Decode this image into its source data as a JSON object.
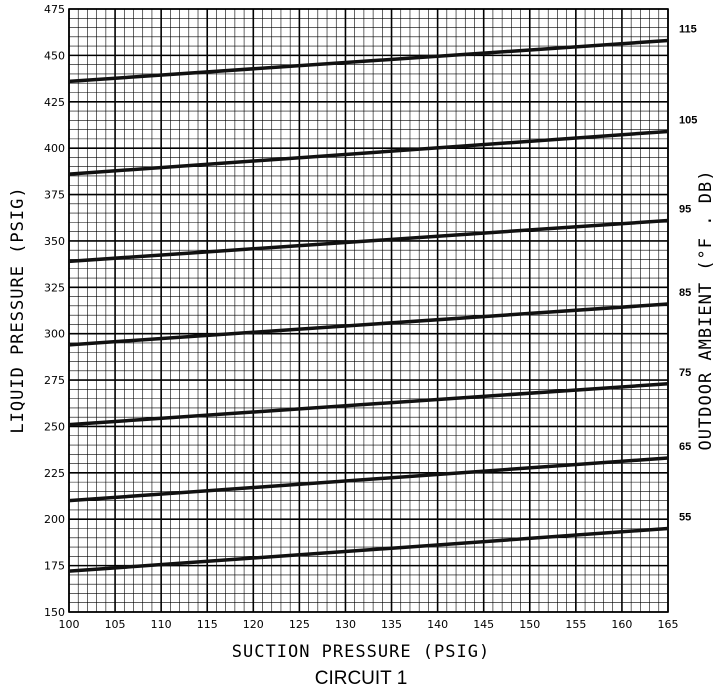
{
  "chart_data": {
    "type": "line",
    "xlabel": "SUCTION PRESSURE (PSIG)",
    "ylabel": "LIQUID PRESSURE (PSIG)",
    "y2label": "OUTDOOR AMBIENT (°F . DB)",
    "caption": "CIRCUIT 1",
    "xlim": [
      100,
      165
    ],
    "ylim": [
      150,
      475
    ],
    "x_ticks": [
      "100",
      "105",
      "110",
      "115",
      "120",
      "125",
      "130",
      "135",
      "140",
      "145",
      "150",
      "155",
      "160",
      "165"
    ],
    "y_ticks": [
      "150",
      "175",
      "200",
      "225",
      "250",
      "275",
      "300",
      "325",
      "350",
      "375",
      "400",
      "425",
      "450",
      "475"
    ],
    "grid": true,
    "series": [
      {
        "name": "55",
        "x": [
          100,
          165
        ],
        "y": [
          172,
          195
        ]
      },
      {
        "name": "65",
        "x": [
          100,
          165
        ],
        "y": [
          210,
          233
        ]
      },
      {
        "name": "75",
        "x": [
          100,
          165
        ],
        "y": [
          251,
          273
        ]
      },
      {
        "name": "85",
        "x": [
          100,
          165
        ],
        "y": [
          294,
          316
        ]
      },
      {
        "name": "95",
        "x": [
          100,
          165
        ],
        "y": [
          339,
          361
        ]
      },
      {
        "name": "105",
        "x": [
          100,
          165
        ],
        "y": [
          386,
          409
        ]
      },
      {
        "name": "115",
        "x": [
          100,
          165
        ],
        "y": [
          436,
          458
        ]
      }
    ]
  }
}
